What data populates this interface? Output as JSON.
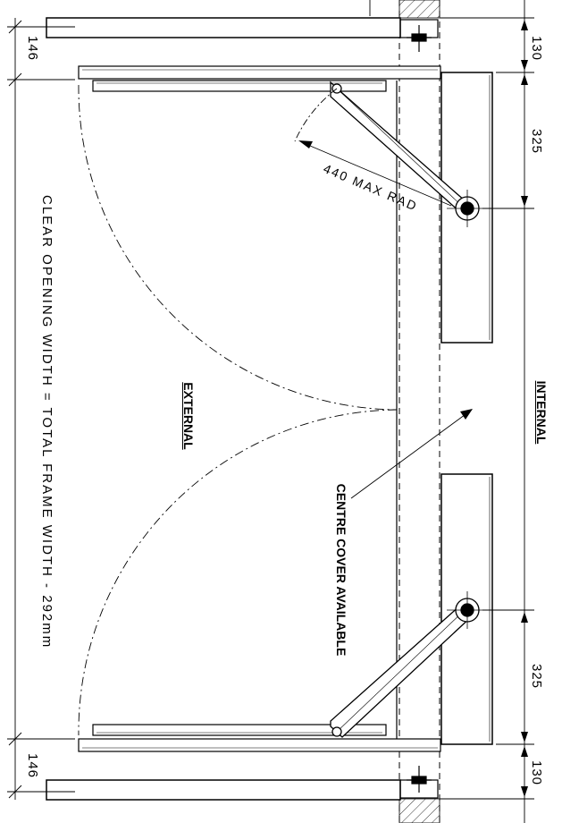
{
  "annotations": {
    "clear_opening": "CLEAR OPENING WIDTH = TOTAL FRAME WIDTH - 292mm",
    "external": "EXTERNAL",
    "internal": "INTERNAL",
    "centre_cover": "CENTRE COVER AVAILABLE",
    "max_rad": "440 MAX RAD"
  },
  "dimensions": {
    "left_top": "146",
    "left_bottom": "146",
    "right_top_130": "130",
    "right_top_325": "325",
    "right_bottom_325": "325",
    "right_bottom_130": "130"
  }
}
